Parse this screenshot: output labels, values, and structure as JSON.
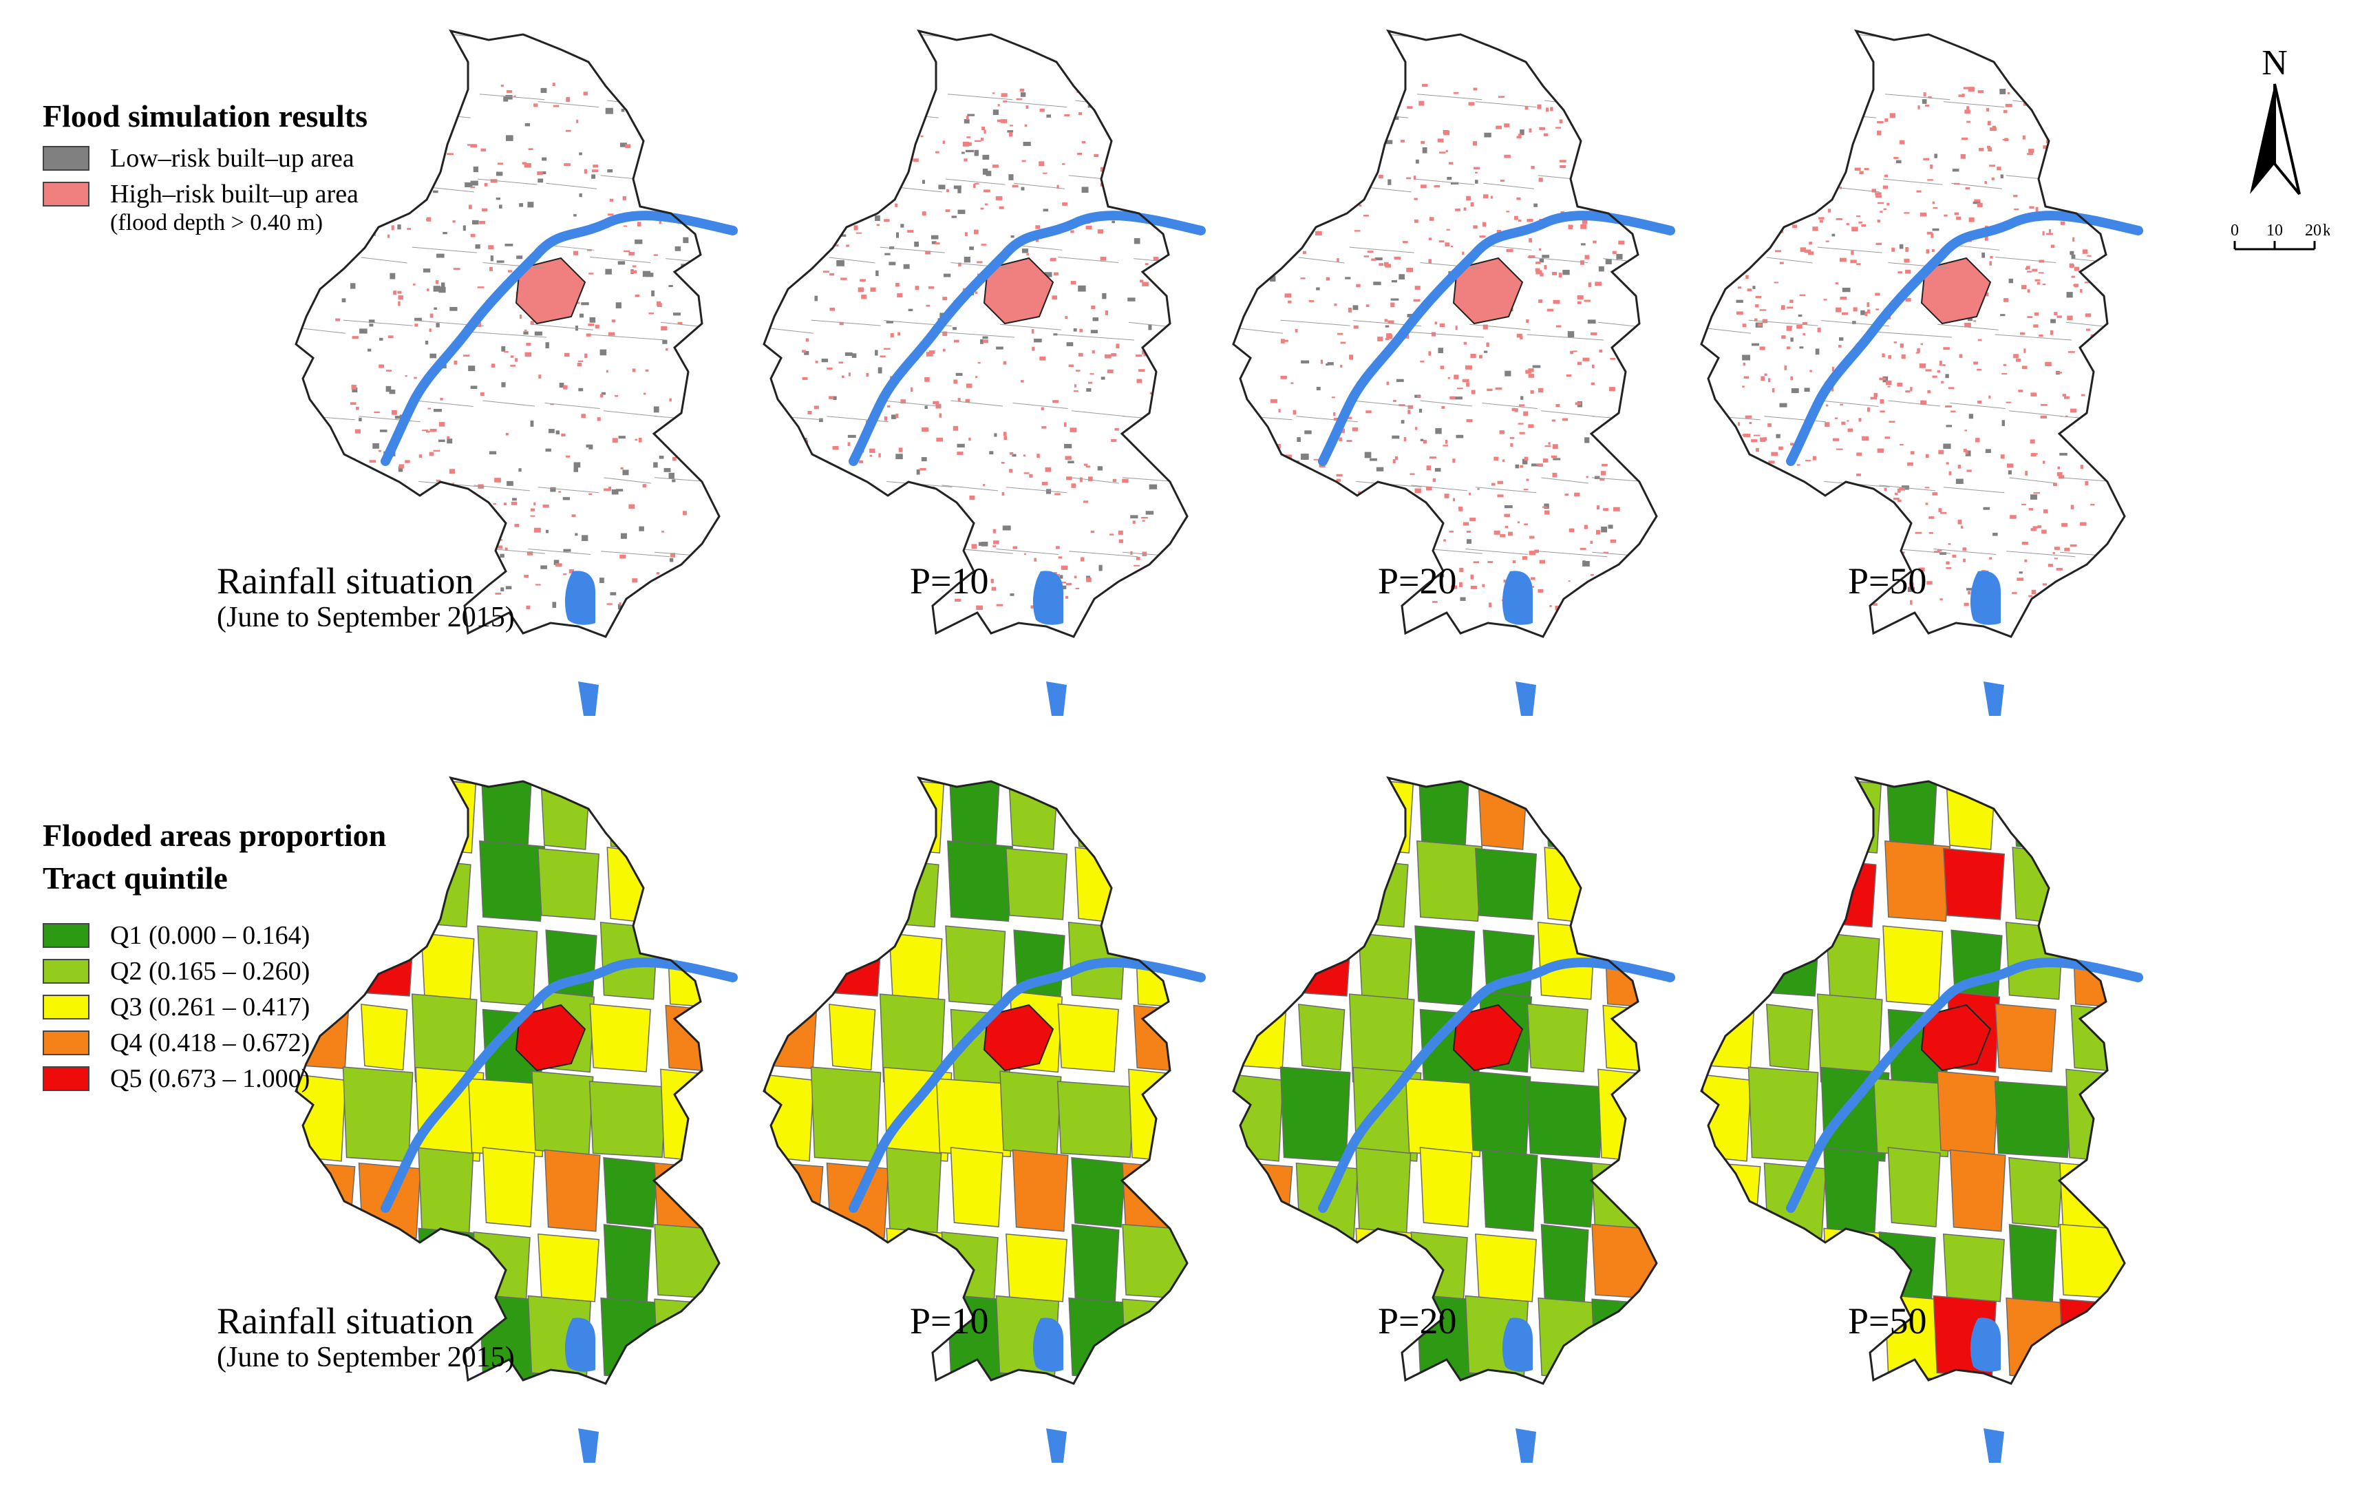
{
  "legend_top": {
    "title": "Flood simulation results",
    "items": [
      {
        "label": "Low–risk built–up area",
        "note": "",
        "color": "#808080"
      },
      {
        "label": "High–risk built–up area",
        "note": "(flood depth > 0.40 m)",
        "color": "#f08080"
      }
    ]
  },
  "legend_bottom": {
    "title_line1": "Flooded areas proportion",
    "title_line2": "Tract quintile",
    "items": [
      {
        "label": "Q1 (0.000 – 0.164)",
        "color": "#2e9a14"
      },
      {
        "label": "Q2 (0.165 – 0.260)",
        "color": "#94cc1e"
      },
      {
        "label": "Q3 (0.261 – 0.417)",
        "color": "#f8f800"
      },
      {
        "label": "Q4 (0.418 – 0.672)",
        "color": "#f58218"
      },
      {
        "label": "Q5 (0.673 – 1.000)",
        "color": "#ee0b0b"
      }
    ]
  },
  "panels": [
    {
      "label": "Rainfall situation",
      "sublabel": "(June to September 2015)"
    },
    {
      "label": "P=10",
      "sublabel": ""
    },
    {
      "label": "P=20",
      "sublabel": ""
    },
    {
      "label": "P=50",
      "sublabel": ""
    }
  ],
  "north_arrow": {
    "letter": "N"
  },
  "scale_bar": {
    "ticks": [
      "0",
      "10",
      "20"
    ],
    "unit": "km"
  },
  "colors": {
    "water": "#3f86e6",
    "outline": "#222222",
    "tract_line": "#6a6a6a",
    "land_top": "#ffffff"
  },
  "tract_quintiles": {
    "Rainfall situation": [
      1,
      2,
      3,
      1,
      2,
      2,
      3,
      1,
      1,
      2,
      1,
      2,
      3,
      4,
      5,
      5,
      3,
      2,
      1,
      2,
      3,
      4,
      3,
      2,
      1,
      2,
      3,
      4,
      3,
      2,
      3,
      3,
      2,
      2,
      3,
      4,
      4,
      2,
      3,
      4,
      1,
      4,
      2,
      1
    ],
    "P=10": [
      3,
      2,
      3,
      1,
      2,
      2,
      3,
      1,
      1,
      2,
      1,
      2,
      3,
      4,
      5,
      5,
      3,
      2,
      1,
      2,
      3,
      4,
      3,
      2,
      2,
      3,
      3,
      4,
      3,
      2,
      3,
      3,
      2,
      2,
      3,
      4,
      4,
      2,
      3,
      4,
      1,
      4,
      2,
      1
    ],
    "P=20": [
      3,
      2,
      3,
      1,
      4,
      1,
      2,
      1,
      1,
      2,
      2,
      1,
      3,
      4,
      5,
      5,
      2,
      1,
      1,
      3,
      4,
      3,
      2,
      2,
      1,
      1,
      2,
      3,
      2,
      1,
      2,
      3,
      1,
      1,
      3,
      4,
      2,
      2,
      3,
      1,
      1,
      2,
      1,
      1
    ],
    "P=50": [
      3,
      1,
      2,
      1,
      3,
      1,
      2,
      1,
      3,
      5,
      4,
      5,
      2,
      3,
      1,
      1,
      2,
      3,
      1,
      2,
      4,
      3,
      2,
      2,
      1,
      5,
      4,
      2,
      3,
      2,
      1,
      2,
      4,
      1,
      2,
      3,
      2,
      1,
      2,
      4,
      2,
      3,
      1,
      1
    ]
  }
}
